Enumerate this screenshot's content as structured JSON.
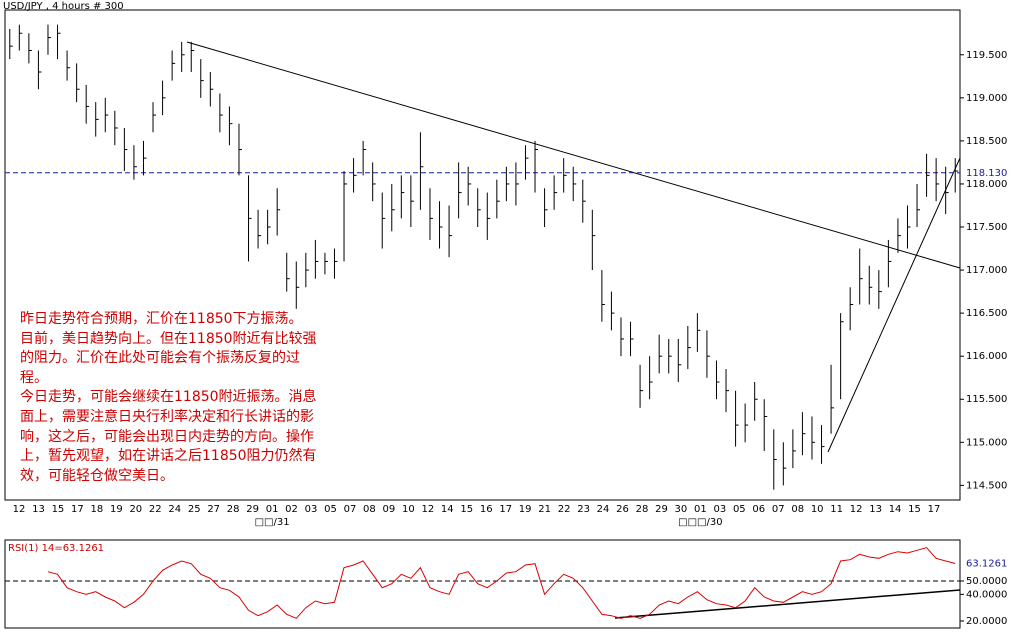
{
  "chart_data": [
    {
      "type": "ohlc",
      "title": "USD/JPY , 4 hours # 300",
      "categories": [
        "12",
        "13",
        "15",
        "17",
        "18",
        "19",
        "20",
        "22",
        "24",
        "25",
        "27",
        "28",
        "29",
        "01",
        "02",
        "03",
        "05",
        "07",
        "08",
        "09",
        "10",
        "12",
        "14",
        "15",
        "16",
        "17",
        "19",
        "21",
        "22",
        "23",
        "24",
        "26",
        "28",
        "29",
        "30",
        "01",
        "03",
        "05",
        "06",
        "07",
        "08",
        "10",
        "11",
        "12",
        "13",
        "14",
        "15",
        "17"
      ],
      "month_labels": [
        null,
        null,
        null,
        null,
        null,
        null,
        null,
        null,
        null,
        null,
        null,
        null,
        null,
        "□□/31",
        null,
        null,
        null,
        null,
        null,
        null,
        null,
        null,
        null,
        null,
        null,
        null,
        null,
        null,
        null,
        null,
        null,
        null,
        null,
        null,
        null,
        "□□□/30",
        null,
        null,
        null,
        null,
        null,
        null,
        null,
        null,
        null,
        null,
        null,
        null
      ],
      "high": [
        119.8,
        119.85,
        119.75,
        119.55,
        119.85,
        119.85,
        119.55,
        119.4,
        119.15,
        118.95,
        119.0,
        118.85,
        118.65,
        118.45,
        118.5,
        118.95,
        119.2,
        119.55,
        119.65,
        119.65,
        119.45,
        119.3,
        119.05,
        118.9,
        118.7,
        118.1,
        117.7,
        117.7,
        117.95,
        117.2,
        117.1,
        117.2,
        117.35,
        117.2,
        117.25,
        118.15,
        118.3,
        118.5,
        118.25,
        117.9,
        118.0,
        118.1,
        118.1,
        118.6,
        117.95,
        117.8,
        117.75,
        118.25,
        118.2,
        117.95,
        117.9,
        118.05,
        118.2,
        118.25,
        118.45,
        118.5,
        117.95,
        118.1,
        118.3,
        118.2,
        118.05,
        117.7,
        117.0,
        116.75,
        116.45,
        116.4,
        115.9,
        116.0,
        116.25,
        116.2,
        116.2,
        116.35,
        116.5,
        116.3,
        115.95,
        115.85,
        115.6,
        115.45,
        115.7,
        115.5,
        115.15,
        115.0,
        115.15,
        115.35,
        115.3,
        115.2,
        115.9,
        116.5,
        116.8,
        117.25,
        117.05,
        117.0,
        117.35,
        117.6,
        117.75,
        118.0,
        118.35,
        118.3,
        118.2,
        118.3
      ],
      "low": [
        119.45,
        119.55,
        119.4,
        119.1,
        119.5,
        119.45,
        119.2,
        118.95,
        118.7,
        118.55,
        118.6,
        118.45,
        118.15,
        118.05,
        118.1,
        118.6,
        118.8,
        119.2,
        119.3,
        119.3,
        119.0,
        118.9,
        118.6,
        118.45,
        118.1,
        117.1,
        117.25,
        117.3,
        117.4,
        116.75,
        116.55,
        116.8,
        116.9,
        116.95,
        116.9,
        117.1,
        117.9,
        118.1,
        117.8,
        117.25,
        117.45,
        117.6,
        117.5,
        117.7,
        117.35,
        117.25,
        117.15,
        117.6,
        117.75,
        117.5,
        117.35,
        117.6,
        117.8,
        117.75,
        118.05,
        117.9,
        117.5,
        117.7,
        117.9,
        117.8,
        117.55,
        117.0,
        116.4,
        116.3,
        116.0,
        116.0,
        115.4,
        115.5,
        115.8,
        115.8,
        115.7,
        115.85,
        116.05,
        115.75,
        115.5,
        115.35,
        114.95,
        115.0,
        115.25,
        114.9,
        114.45,
        114.5,
        114.7,
        114.85,
        114.8,
        114.75,
        115.1,
        115.5,
        116.3,
        116.6,
        116.6,
        116.55,
        116.8,
        117.2,
        117.25,
        117.5,
        117.85,
        117.8,
        117.65,
        117.9
      ],
      "close": [
        119.6,
        119.75,
        119.55,
        119.3,
        119.7,
        119.75,
        119.35,
        119.1,
        118.9,
        118.75,
        118.8,
        118.65,
        118.4,
        118.2,
        118.3,
        118.8,
        119.0,
        119.4,
        119.5,
        119.55,
        119.2,
        119.1,
        118.8,
        118.7,
        118.4,
        117.6,
        117.4,
        117.5,
        117.7,
        116.9,
        116.8,
        117.0,
        117.1,
        117.1,
        117.1,
        118.0,
        118.1,
        118.4,
        118.0,
        117.6,
        117.7,
        117.9,
        117.8,
        118.2,
        117.6,
        117.5,
        117.4,
        117.9,
        118.0,
        117.7,
        117.6,
        117.8,
        118.0,
        118.0,
        118.3,
        118.4,
        117.7,
        117.9,
        118.1,
        118.0,
        117.8,
        117.4,
        116.6,
        116.5,
        116.2,
        116.2,
        115.6,
        115.7,
        116.0,
        116.0,
        115.9,
        116.1,
        116.3,
        116.0,
        115.7,
        115.6,
        115.2,
        115.2,
        115.5,
        115.3,
        114.8,
        114.7,
        114.9,
        115.1,
        115.0,
        114.95,
        115.4,
        116.4,
        116.6,
        116.9,
        116.8,
        116.75,
        117.1,
        117.4,
        117.5,
        117.7,
        118.1,
        118.0,
        117.9,
        118.15
      ],
      "color": "#000000",
      "ylim": [
        114.33,
        120.02
      ],
      "yticks": [
        {
          "value": 114.5,
          "label": "114.500"
        },
        {
          "value": 115.0,
          "label": "115.000"
        },
        {
          "value": 115.5,
          "label": "115.500"
        },
        {
          "value": 116.0,
          "label": "116.000"
        },
        {
          "value": 116.5,
          "label": "116.500"
        },
        {
          "value": 117.0,
          "label": "117.000"
        },
        {
          "value": 117.5,
          "label": "117.500"
        },
        {
          "value": 118.0,
          "label": "118.000"
        },
        {
          "value": 118.5,
          "label": "118.500"
        },
        {
          "value": 119.0,
          "label": "119.000"
        },
        {
          "value": 119.5,
          "label": "119.500"
        }
      ],
      "hline": {
        "value": 118.13,
        "label": "118.130",
        "color": "#1a1a9a"
      },
      "annotation": [
        "昨日走势符合预期，汇价在11850下方振荡。",
        "目前，美日趋势向上。但在11850附近有比较强",
        "的阻力。汇价在此处可能会有个振荡反复的过",
        "程。",
        "今日走势，可能会继续在11850附近振荡。消息",
        "面上，需要注意日央行利率决定和行长讲话的影",
        "响，这之后，可能会出现日内走势的方向。操作",
        "上，暂先观望，如在讲话之后11850阻力仍然有",
        "效，可能轻仓做空美日。"
      ],
      "annotation_color": "#cc0000"
    },
    {
      "type": "line",
      "title": "RSI(1) 14=63.1261",
      "values": [
        null,
        null,
        null,
        null,
        57,
        55,
        45,
        42,
        40,
        42,
        38,
        35,
        30,
        34,
        40,
        50,
        58,
        62,
        65,
        63,
        55,
        52,
        45,
        43,
        38,
        28,
        24,
        27,
        32,
        25,
        22,
        30,
        35,
        33,
        34,
        60,
        62,
        65,
        55,
        45,
        48,
        55,
        52,
        60,
        45,
        42,
        40,
        55,
        57,
        48,
        45,
        50,
        56,
        57,
        62,
        63,
        40,
        48,
        55,
        52,
        45,
        35,
        25,
        24,
        22,
        24,
        22,
        25,
        32,
        35,
        33,
        38,
        42,
        36,
        33,
        32,
        30,
        35,
        45,
        38,
        35,
        34,
        38,
        42,
        40,
        42,
        48,
        65,
        66,
        70,
        68,
        67,
        70,
        72,
        71,
        73,
        75,
        67,
        65,
        63.1261
      ],
      "color": "#dd0000",
      "ylim": [
        14.75,
        80.75
      ],
      "yticks": [
        {
          "value": 50,
          "label": "50.0000"
        },
        {
          "value": 40,
          "label": "40.0000"
        },
        {
          "value": 20,
          "label": "20.0000"
        }
      ],
      "refline": 50
    }
  ]
}
